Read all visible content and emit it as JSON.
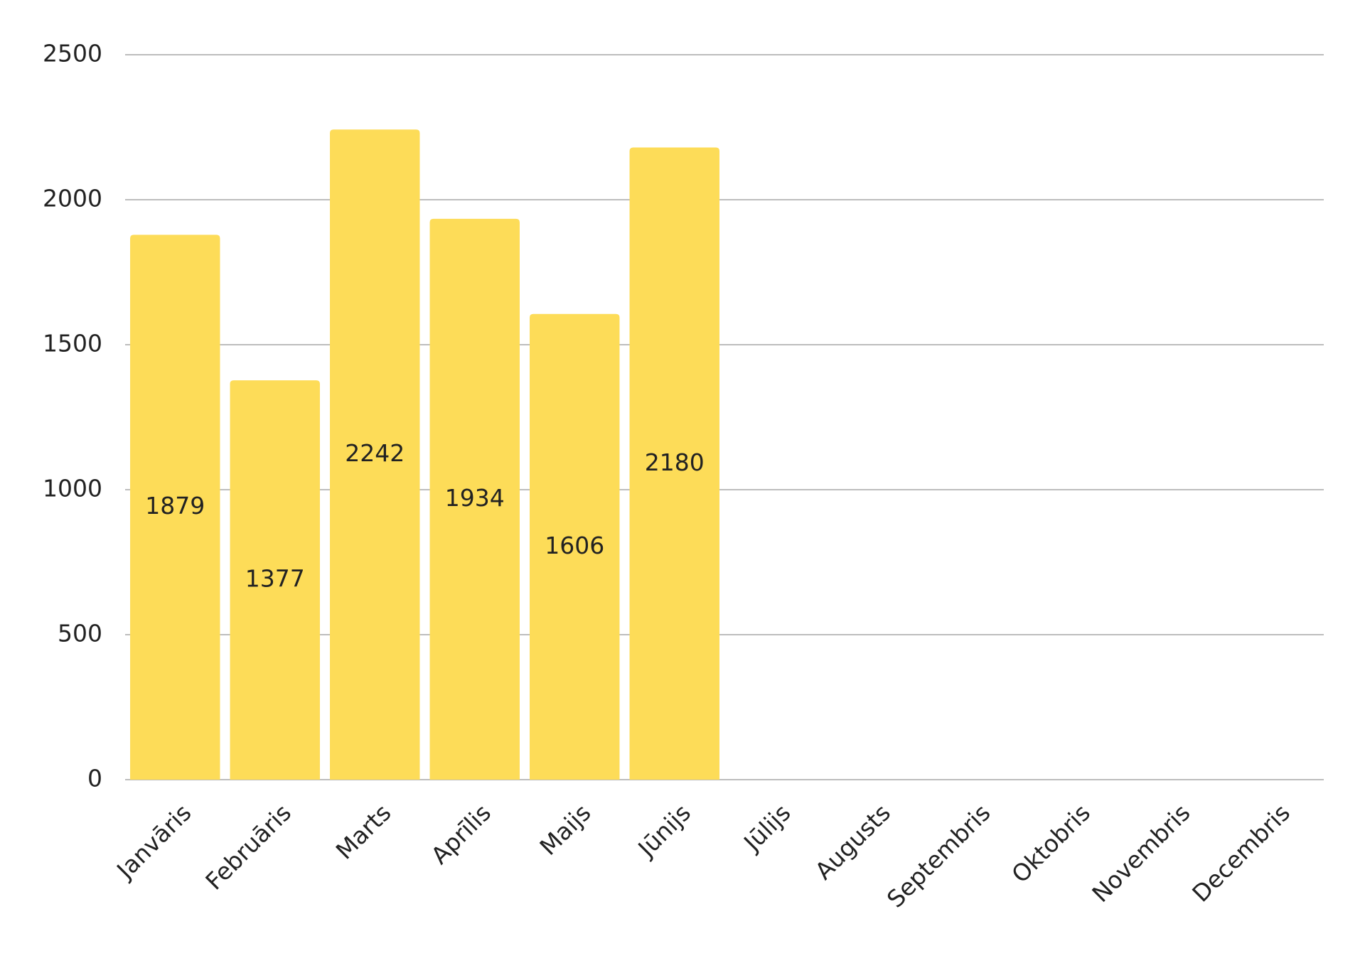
{
  "chart_data": {
    "type": "bar",
    "categories": [
      "Janvāris",
      "Februāris",
      "Marts",
      "Aprīlis",
      "Maijs",
      "Jūnijs",
      "Jūlijs",
      "Augusts",
      "Septembris",
      "Oktobris",
      "Novembris",
      "Decembris"
    ],
    "values": [
      1879,
      1377,
      2242,
      1934,
      1606,
      2180,
      null,
      null,
      null,
      null,
      null,
      null
    ],
    "color": "#fddc58",
    "ylim": [
      0,
      2500
    ],
    "yticks": [
      0,
      500,
      1000,
      1500,
      2000,
      2500
    ],
    "grid": true,
    "data_labels": true
  }
}
